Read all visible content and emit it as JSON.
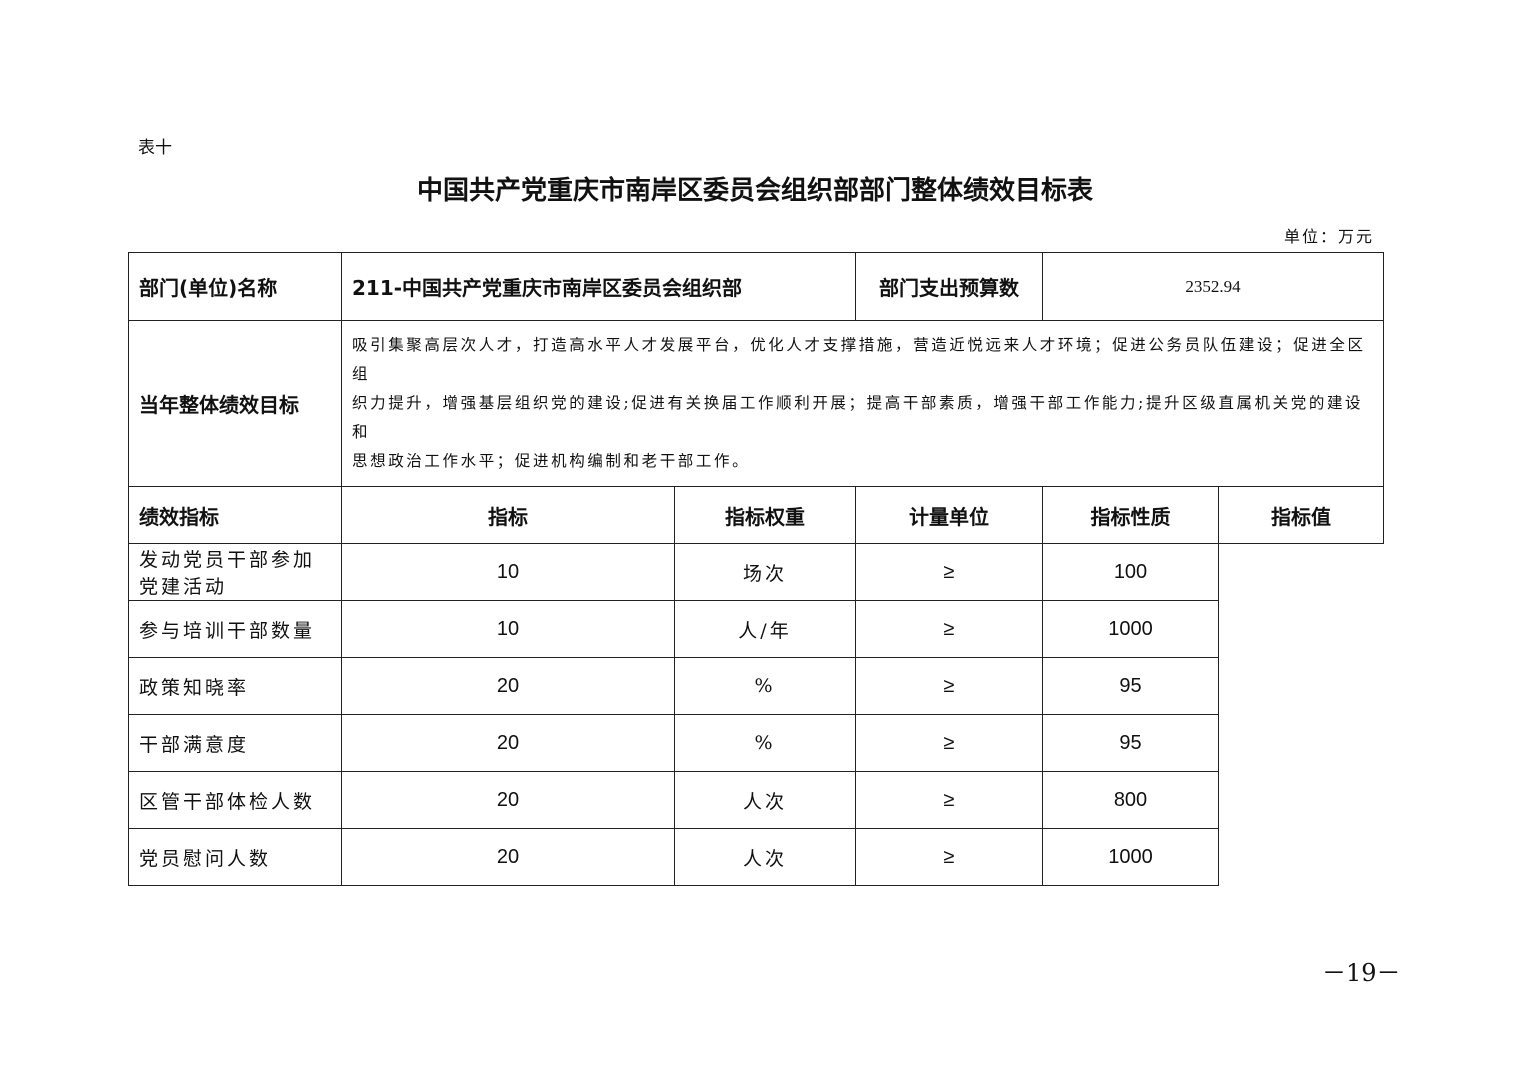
{
  "table_label": "表十",
  "title": "中国共产党重庆市南岸区委员会组织部部门整体绩效目标表",
  "unit": "单位：万元",
  "dept_name_label": "部门(单位)名称",
  "dept_name": "211-中国共产党重庆市南岸区委员会组织部",
  "budget_label": "部门支出预算数",
  "budget": "2352.94",
  "goal_label": "当年整体绩效目标",
  "goal_lines": [
    "吸引集聚高层次人才，打造高水平人才发展平台，优化人才支撑措施，营造近悦远来人才环境；促进公务员队伍建设；促进全区组",
    "织力提升，增强基层组织党的建设;促进有关换届工作顺利开展；提高干部素质，增强干部工作能力;提升区级直属机关党的建设和",
    "思想政治工作水平；促进机构编制和老干部工作。"
  ],
  "indicators_label": "绩效指标",
  "headers": [
    "指标",
    "指标权重",
    "计量单位",
    "指标性质",
    "指标值"
  ],
  "rows": [
    [
      "发动党员干部参加党建活动",
      "10",
      "场次",
      "≥",
      "100"
    ],
    [
      "参与培训干部数量",
      "10",
      "人/年",
      "≥",
      "1000"
    ],
    [
      "政策知晓率",
      "20",
      "%",
      "≥",
      "95"
    ],
    [
      "干部满意度",
      "20",
      "%",
      "≥",
      "95"
    ],
    [
      "区管干部体检人数",
      "20",
      "人次",
      "≥",
      "800"
    ],
    [
      "党员慰问人数",
      "20",
      "人次",
      "≥",
      "1000"
    ]
  ],
  "page_number": "－19－"
}
